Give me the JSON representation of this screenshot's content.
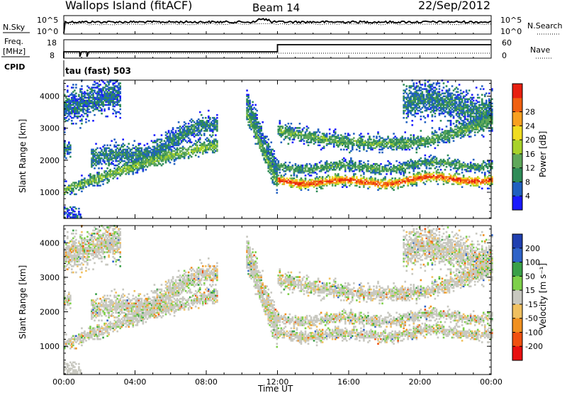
{
  "header": {
    "title": "Wallops Island (fitACF)",
    "beam": "Beam 14",
    "date": "22/Sep/2012"
  },
  "panels": {
    "nsky": {
      "label": "N.Sky",
      "ticks": [
        "10^5",
        "10^0"
      ]
    },
    "nsearch": {
      "label": "N.Search",
      "ticks": [
        "10^5",
        "10^0"
      ]
    },
    "freq": {
      "label_line1": "Freq.",
      "label_line2": "[MHz]",
      "ticks": [
        "18",
        "8"
      ]
    },
    "nave": {
      "label": "Nave",
      "ticks": [
        "60",
        "0"
      ]
    },
    "cpid": {
      "label": "CPID",
      "value": "tau (fast) 503"
    }
  },
  "chart_data": [
    {
      "type": "heatmap",
      "name": "power",
      "ylabel": "Slant Range [km]",
      "xlabel": "Time UT",
      "x_ticks": [
        "00:00",
        "04:00",
        "08:00",
        "12:00",
        "16:00",
        "20:00",
        "00:00"
      ],
      "xlim": [
        0,
        24
      ],
      "y_ticks": [
        "1000",
        "2000",
        "3000",
        "4000"
      ],
      "ylim": [
        180,
        4500
      ],
      "colorbar": {
        "label": "Power [dB]",
        "ticks": [
          "4",
          "8",
          "12",
          "16",
          "20",
          "24",
          "28"
        ],
        "colors": [
          "#1a1aff",
          "#2060c0",
          "#2e8b57",
          "#5fa85a",
          "#a8d22a",
          "#f0dc20",
          "#f8a020",
          "#f06010",
          "#e82010"
        ]
      }
    },
    {
      "type": "heatmap",
      "name": "velocity",
      "ylabel": "Slant Range [km]",
      "xlabel": "Time UT",
      "x_ticks": [
        "00:00",
        "04:00",
        "08:00",
        "12:00",
        "16:00",
        "20:00",
        "00:00"
      ],
      "xlim": [
        0,
        24
      ],
      "y_ticks": [
        "1000",
        "2000",
        "3000",
        "4000"
      ],
      "ylim": [
        180,
        4500
      ],
      "colorbar": {
        "label": "Velocity [m s⁻¹]",
        "ticks": [
          "200",
          "100",
          "50",
          "15",
          "-15",
          "-50",
          "-100",
          "-200"
        ],
        "colors": [
          "#2040b0",
          "#2f63c8",
          "#3aa048",
          "#7ed04a",
          "#c8c8c0",
          "#f0c060",
          "#f09020",
          "#f05010",
          "#e81010"
        ]
      }
    }
  ],
  "axis": {
    "xlabel": "Time UT"
  }
}
